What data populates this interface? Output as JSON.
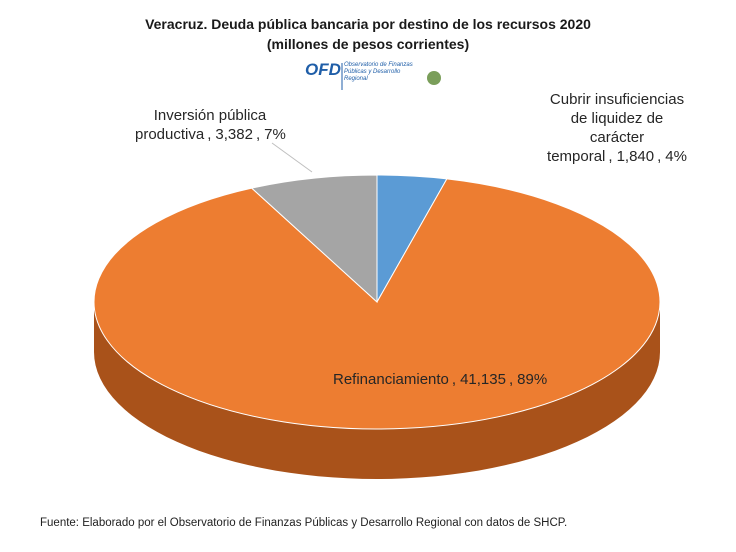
{
  "chart_data": {
    "type": "pie3d",
    "title": "Veracruz. Deuda pública bancaria por destino de los recursos 2020",
    "subtitle": "(millones de pesos corrientes)",
    "categories": [
      "Cubrir insuficiencias de liquidez de carácter temporal",
      "Refinanciamiento",
      "Inversión pública productiva"
    ],
    "values": [
      1840,
      41135,
      3382
    ],
    "value_labels": [
      "1,840",
      "41,135",
      "3,382"
    ],
    "percentages": [
      4,
      89,
      7
    ],
    "percentage_labels": [
      "4%",
      "89%",
      "7%"
    ],
    "separator": ",",
    "colors": [
      "#5b9bd5",
      "#ed7d31",
      "#a5a5a5"
    ],
    "side_colors": [
      "#3b6f9e",
      "#a9521a",
      "#737373"
    ],
    "logo": {
      "text": "OFD",
      "caption": "Observatorio de Finanzas Públicas y Desarrollo Regional"
    },
    "source": "Fuente: Elaborado por el Observatorio de Finanzas Públicas y Desarrollo Regional con datos de SHCP."
  }
}
